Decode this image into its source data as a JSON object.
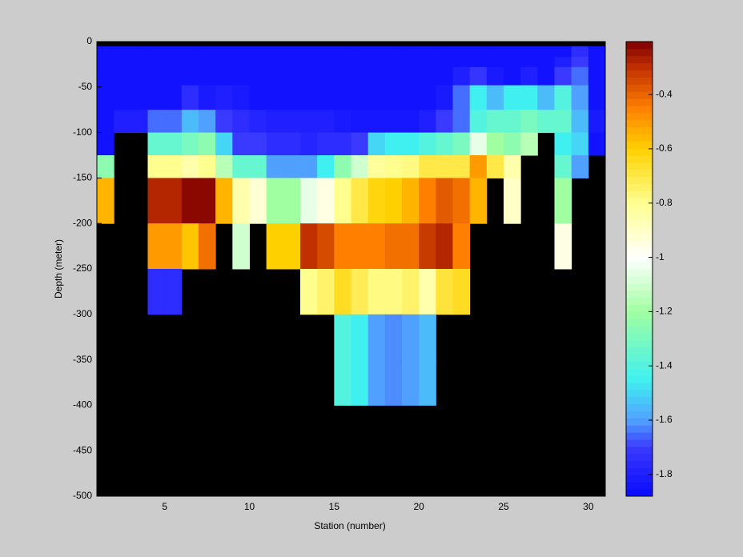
{
  "chart_data": {
    "type": "heatmap",
    "x_label": "Station (number)",
    "y_label": "Depth (meter)",
    "xbins": [
      1,
      2,
      3,
      4,
      5,
      6,
      7,
      8,
      9,
      10,
      11,
      12,
      13,
      14,
      15,
      16,
      17,
      18,
      19,
      20,
      21,
      22,
      23,
      24,
      25,
      26,
      27,
      28,
      29,
      30,
      31
    ],
    "ybins": [
      0,
      -5,
      -17,
      -28,
      -48,
      -75,
      -100,
      -125,
      -150,
      -200,
      -250,
      -300,
      -350,
      -400,
      -450,
      -500
    ],
    "values": [
      [
        null,
        null,
        null,
        null,
        null,
        null,
        null,
        null,
        null,
        null,
        null,
        null,
        null,
        null,
        null,
        null,
        null,
        null,
        null,
        null,
        null,
        null,
        null,
        null,
        null,
        null,
        null,
        null,
        null,
        null
      ],
      [
        -1.85,
        -1.85,
        -1.85,
        -1.85,
        -1.85,
        -1.85,
        -1.85,
        -1.85,
        -1.85,
        -1.85,
        -1.85,
        -1.85,
        -1.85,
        -1.85,
        -1.85,
        -1.85,
        -1.85,
        -1.85,
        -1.85,
        -1.85,
        -1.85,
        -1.85,
        -1.85,
        -1.85,
        -1.85,
        -1.85,
        -1.85,
        -1.85,
        -1.75,
        -1.85
      ],
      [
        -1.85,
        -1.85,
        -1.85,
        -1.85,
        -1.85,
        -1.85,
        -1.85,
        -1.85,
        -1.85,
        -1.85,
        -1.85,
        -1.85,
        -1.85,
        -1.85,
        -1.85,
        -1.85,
        -1.85,
        -1.85,
        -1.85,
        -1.85,
        -1.85,
        -1.85,
        -1.85,
        -1.85,
        -1.85,
        -1.85,
        -1.85,
        -1.8,
        -1.7,
        -1.85
      ],
      [
        -1.85,
        -1.85,
        -1.85,
        -1.85,
        -1.85,
        -1.85,
        -1.85,
        -1.85,
        -1.85,
        -1.85,
        -1.85,
        -1.85,
        -1.85,
        -1.85,
        -1.85,
        -1.85,
        -1.85,
        -1.85,
        -1.85,
        -1.85,
        -1.85,
        -1.8,
        -1.72,
        -1.82,
        -1.85,
        -1.8,
        -1.85,
        -1.7,
        -1.65,
        -1.85
      ],
      [
        -1.85,
        -1.85,
        -1.85,
        -1.85,
        -1.85,
        -1.75,
        -1.82,
        -1.8,
        -1.82,
        -1.85,
        -1.85,
        -1.85,
        -1.85,
        -1.85,
        -1.85,
        -1.85,
        -1.85,
        -1.85,
        -1.85,
        -1.85,
        -1.82,
        -1.65,
        -1.45,
        -1.55,
        -1.45,
        -1.45,
        -1.55,
        -1.4,
        -1.6,
        -1.85
      ],
      [
        -1.85,
        -1.8,
        -1.8,
        -1.65,
        -1.65,
        -1.55,
        -1.6,
        -1.7,
        -1.75,
        -1.78,
        -1.8,
        -1.8,
        -1.8,
        -1.8,
        -1.82,
        -1.83,
        -1.83,
        -1.83,
        -1.83,
        -1.8,
        -1.7,
        -1.65,
        -1.4,
        -1.35,
        -1.35,
        -1.3,
        -1.35,
        -1.35,
        -1.55,
        -1.82
      ],
      [
        -1.85,
        null,
        null,
        -1.35,
        -1.35,
        -1.3,
        -1.25,
        -1.5,
        -1.7,
        -1.7,
        -1.75,
        -1.75,
        -1.78,
        -1.75,
        -1.75,
        -1.7,
        -1.5,
        -1.45,
        -1.45,
        -1.4,
        -1.35,
        -1.3,
        -1.05,
        -1.2,
        -1.25,
        -1.15,
        null,
        -1.45,
        -1.5,
        -1.85
      ],
      [
        -1.25,
        null,
        null,
        -0.8,
        -0.8,
        -0.85,
        -0.8,
        -1.15,
        -1.35,
        -1.35,
        -1.6,
        -1.6,
        -1.6,
        -1.45,
        -1.25,
        -1.1,
        -0.82,
        -0.8,
        -0.78,
        -0.7,
        -0.7,
        -0.7,
        -0.5,
        -0.7,
        -0.85,
        null,
        null,
        -1.35,
        -1.6,
        null
      ],
      [
        -0.55,
        null,
        null,
        -0.28,
        -0.28,
        -0.22,
        -0.22,
        -0.55,
        -0.85,
        -0.92,
        -1.2,
        -1.2,
        -1.05,
        -0.95,
        -0.8,
        -0.7,
        -0.62,
        -0.6,
        -0.55,
        -0.45,
        -0.38,
        -0.42,
        -0.55,
        null,
        -0.9,
        null,
        null,
        -1.2,
        null,
        null
      ],
      [
        null,
        null,
        null,
        -0.5,
        -0.5,
        -0.58,
        -0.42,
        null,
        -1.1,
        null,
        -0.6,
        -0.6,
        -0.3,
        -0.35,
        -0.45,
        -0.45,
        -0.45,
        -0.42,
        -0.42,
        -0.32,
        -0.28,
        -0.45,
        null,
        null,
        null,
        null,
        null,
        -0.95,
        null,
        null
      ],
      [
        null,
        null,
        null,
        -1.75,
        -1.75,
        null,
        null,
        null,
        null,
        null,
        null,
        null,
        -0.8,
        -0.75,
        -0.65,
        -0.72,
        -0.78,
        -0.78,
        -0.75,
        -0.85,
        -0.68,
        -0.65,
        null,
        null,
        null,
        null,
        null,
        null,
        null,
        null
      ],
      [
        null,
        null,
        null,
        null,
        null,
        null,
        null,
        null,
        null,
        null,
        null,
        null,
        null,
        null,
        -1.4,
        -1.45,
        -1.6,
        -1.62,
        -1.6,
        -1.55,
        null,
        null,
        null,
        null,
        null,
        null,
        null,
        null,
        null,
        null
      ],
      [
        null,
        null,
        null,
        null,
        null,
        null,
        null,
        null,
        null,
        null,
        null,
        null,
        null,
        null,
        -1.4,
        -1.45,
        -1.6,
        -1.62,
        -1.6,
        -1.55,
        null,
        null,
        null,
        null,
        null,
        null,
        null,
        null,
        null,
        null
      ],
      [
        null,
        null,
        null,
        null,
        null,
        null,
        null,
        null,
        null,
        null,
        null,
        null,
        null,
        null,
        null,
        null,
        null,
        null,
        null,
        null,
        null,
        null,
        null,
        null,
        null,
        null,
        null,
        null,
        null,
        null
      ],
      [
        null,
        null,
        null,
        null,
        null,
        null,
        null,
        null,
        null,
        null,
        null,
        null,
        null,
        null,
        null,
        null,
        null,
        null,
        null,
        null,
        null,
        null,
        null,
        null,
        null,
        null,
        null,
        null,
        null,
        null
      ]
    ],
    "xlim": [
      1,
      31
    ],
    "ylim": [
      -500,
      0
    ],
    "xticks": [
      5,
      10,
      15,
      20,
      25,
      30
    ],
    "yticks": [
      0,
      -50,
      -100,
      -150,
      -200,
      -250,
      -300,
      -350,
      -400,
      -450,
      -500
    ],
    "clim": [
      -1.88,
      -0.205
    ],
    "cticks": [
      -0.4,
      -0.6,
      -0.8,
      -1,
      -1.2,
      -1.4,
      -1.6,
      -1.8
    ],
    "missing_color": "#000000",
    "colormap": [
      {
        "value": -1.88,
        "color": "#0a0aff"
      },
      {
        "value": -1.7,
        "color": "#3a3aff"
      },
      {
        "value": -1.6,
        "color": "#50a0ff"
      },
      {
        "value": -1.45,
        "color": "#40f0f0"
      },
      {
        "value": -1.2,
        "color": "#a0ffa0"
      },
      {
        "value": -1,
        "color": "#ffffff"
      },
      {
        "value": -0.8,
        "color": "#ffff90"
      },
      {
        "value": -0.6,
        "color": "#ffd000"
      },
      {
        "value": -0.45,
        "color": "#ff8000"
      },
      {
        "value": -0.3,
        "color": "#c03000"
      },
      {
        "value": -0.205,
        "color": "#800000"
      }
    ]
  }
}
